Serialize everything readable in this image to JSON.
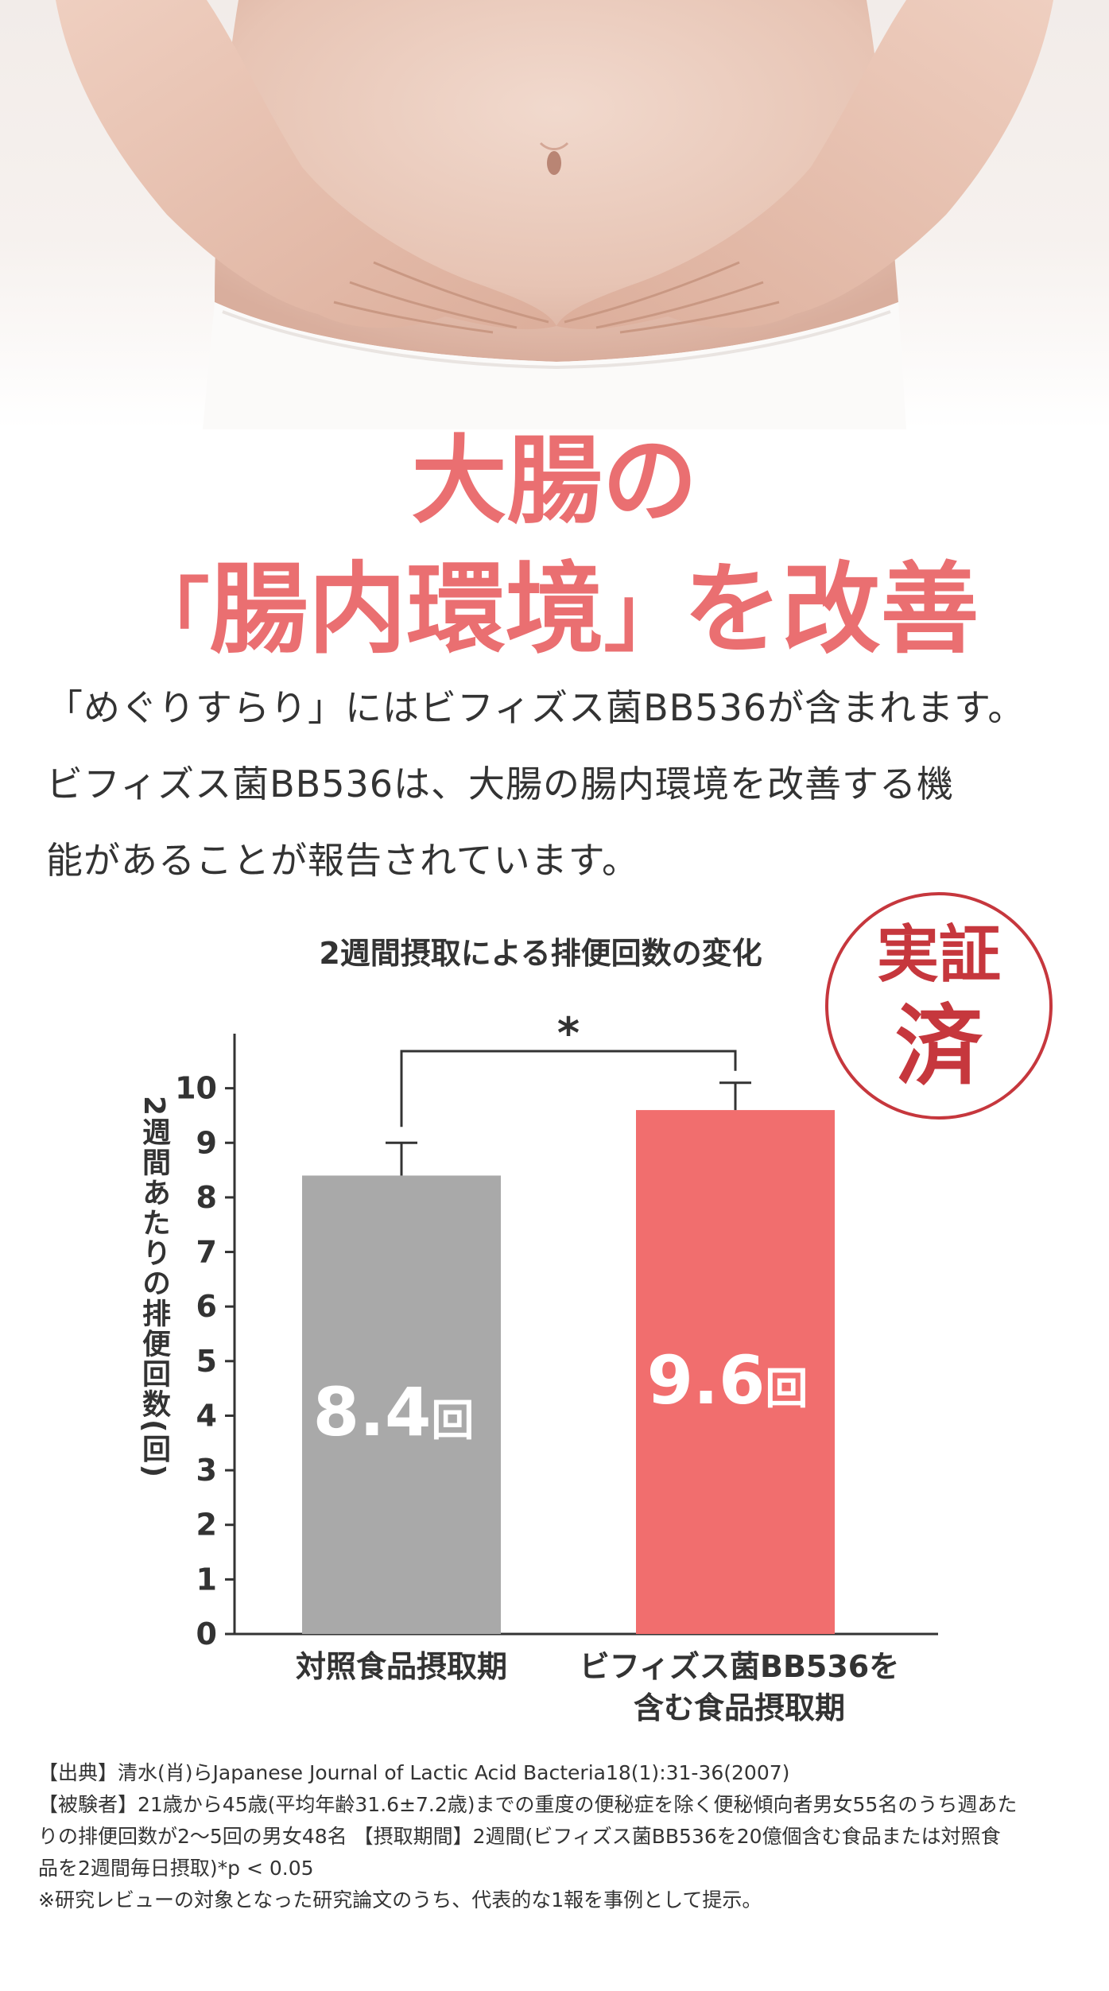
{
  "hero": {
    "headline_line1": "大腸の",
    "headline_line2_open": "「",
    "headline_line2_main": "腸内環境",
    "headline_line2_close": "」",
    "headline_line2_tail": "を改善",
    "accent_color": "#ea6f71"
  },
  "lead": {
    "line1": "「めぐりすらり」にはビフィズス菌BB536が含まれます。",
    "line2": "ビフィズス菌BB536は、大腸の腸内環境を改善する機",
    "line3": "能があることが報告されています。"
  },
  "stamp": {
    "line1": "実証",
    "line2": "済",
    "color": "#c6373d"
  },
  "chart_data": {
    "type": "bar",
    "title": "2週間摂取による排便回数の変化",
    "ylabel": "2週間あたりの排便回数(回)",
    "xlabel": "",
    "categories": [
      "対照食品摂取期",
      "ビフィズス菌BB536を含む食品摂取期"
    ],
    "categories_display": [
      [
        "対照食品摂取期"
      ],
      [
        "ビフィズス菌BB536を",
        "含む食品摂取期"
      ]
    ],
    "values": [
      8.4,
      9.6
    ],
    "error_upper": [
      9.0,
      10.1
    ],
    "bar_labels": [
      "8.4",
      "9.6"
    ],
    "bar_label_unit": "回",
    "bar_colors": [
      "#a9a9a9",
      "#f16e6e"
    ],
    "ylim": [
      0,
      11
    ],
    "yticks": [
      0,
      1,
      2,
      3,
      4,
      5,
      6,
      7,
      8,
      9,
      10
    ],
    "significance_marker": "*",
    "grid": false
  },
  "notes": {
    "line1": "【出典】清水(肖)らJapanese Journal of Lactic Acid Bacteria18(1):31-36(2007)",
    "line2": "【被験者】21歳から45歳(平均年齢31.6±7.2歳)までの重度の便秘症を除く便秘傾向者男女55名のうち週あた",
    "line3": "りの排便回数が2〜5回の男女48名 【摂取期間】2週間(ビフィズス菌BB536を20億個含む食品または対照食",
    "line4": "品を2週間毎日摂取)*p < 0.05",
    "line5": "※研究レビューの対象となった研究論文のうち、代表的な1報を事例として提示。"
  }
}
